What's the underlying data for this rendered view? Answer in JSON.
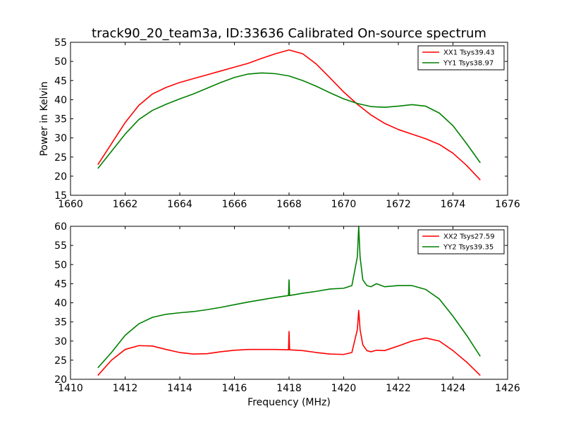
{
  "figure": {
    "title": "track90_20_team3a, ID:33636 Calibrated On-source spectrum",
    "background": "#ffffff"
  },
  "chart_data": [
    {
      "type": "line",
      "title": "track90_20_team3a, ID:33636 Calibrated On-source spectrum",
      "xlabel": "",
      "ylabel": "Power in Kelvin",
      "xlim": [
        1660,
        1676
      ],
      "ylim": [
        15,
        55
      ],
      "xticks": [
        1660,
        1662,
        1664,
        1666,
        1668,
        1670,
        1672,
        1674,
        1676
      ],
      "yticks": [
        15,
        20,
        25,
        30,
        35,
        40,
        45,
        50,
        55
      ],
      "grid": false,
      "legend_position": "top-right",
      "series": [
        {
          "name": "XX1 Tsys39.43",
          "color": "#ff0000",
          "x": [
            1661,
            1661.5,
            1662,
            1662.5,
            1663,
            1663.5,
            1664,
            1664.5,
            1665,
            1665.5,
            1666,
            1666.5,
            1667,
            1667.5,
            1668,
            1668.5,
            1669,
            1669.5,
            1670,
            1670.5,
            1671,
            1671.5,
            1672,
            1672.5,
            1673,
            1673.5,
            1674,
            1674.5,
            1675
          ],
          "y": [
            23,
            28.5,
            34,
            38.5,
            41.5,
            43.2,
            44.5,
            45.5,
            46.5,
            47.5,
            48.5,
            49.5,
            50.8,
            52,
            53,
            52,
            49.3,
            45.7,
            42,
            38.8,
            36,
            33.8,
            32.2,
            31,
            29.8,
            28.3,
            26,
            22.8,
            19
          ]
        },
        {
          "name": "YY1 Tsys38.97",
          "color": "#008000",
          "x": [
            1661,
            1661.5,
            1662,
            1662.5,
            1663,
            1663.5,
            1664,
            1664.5,
            1665,
            1665.5,
            1666,
            1666.5,
            1667,
            1667.5,
            1668,
            1668.5,
            1669,
            1669.5,
            1670,
            1670.5,
            1671,
            1671.5,
            1672,
            1672.5,
            1673,
            1673.5,
            1674,
            1674.5,
            1675
          ],
          "y": [
            22,
            26.5,
            31,
            34.8,
            37.2,
            38.8,
            40.2,
            41.5,
            43,
            44.5,
            45.8,
            46.7,
            47,
            46.8,
            46.2,
            45,
            43.5,
            41.8,
            40.2,
            39,
            38.2,
            38,
            38.3,
            38.7,
            38.3,
            36.5,
            33.2,
            28.5,
            23.5
          ]
        }
      ]
    },
    {
      "type": "line",
      "title": "",
      "xlabel": "Frequency (MHz)",
      "ylabel": "",
      "xlim": [
        1410,
        1426
      ],
      "ylim": [
        20,
        60
      ],
      "xticks": [
        1410,
        1412,
        1414,
        1416,
        1418,
        1420,
        1422,
        1424,
        1426
      ],
      "yticks": [
        20,
        25,
        30,
        35,
        40,
        45,
        50,
        55,
        60
      ],
      "grid": false,
      "legend_position": "top-right",
      "series": [
        {
          "name": "XX2 Tsys27.59",
          "color": "#ff0000",
          "x": [
            1411,
            1411.5,
            1412,
            1412.5,
            1413,
            1413.5,
            1414,
            1414.5,
            1415,
            1415.5,
            1416,
            1416.5,
            1417,
            1417.5,
            1417.98,
            1418.0,
            1418.02,
            1418.5,
            1419,
            1419.5,
            1420,
            1420.3,
            1420.5,
            1420.55,
            1420.6,
            1420.7,
            1420.85,
            1421,
            1421.2,
            1421.5,
            1422,
            1422.5,
            1423,
            1423.5,
            1424,
            1424.5,
            1425
          ],
          "y": [
            21,
            25,
            27.8,
            28.8,
            28.7,
            27.8,
            27,
            26.6,
            26.7,
            27.2,
            27.6,
            27.8,
            27.8,
            27.8,
            27.7,
            32.5,
            27.7,
            27.5,
            27,
            26.6,
            26.5,
            27,
            33,
            38,
            33,
            29,
            27.5,
            27.2,
            27.6,
            27.5,
            28.7,
            30,
            30.8,
            30,
            27.5,
            24.5,
            21
          ]
        },
        {
          "name": "YY2 Tsys39.35",
          "color": "#008000",
          "x": [
            1411,
            1411.5,
            1412,
            1412.5,
            1413,
            1413.5,
            1414,
            1414.5,
            1415,
            1415.5,
            1416,
            1416.5,
            1417,
            1417.5,
            1417.98,
            1418.0,
            1418.02,
            1418.5,
            1419,
            1419.5,
            1420,
            1420.3,
            1420.5,
            1420.55,
            1420.6,
            1420.7,
            1420.85,
            1421,
            1421.2,
            1421.5,
            1422,
            1422.5,
            1423,
            1423.5,
            1424,
            1424.5,
            1425
          ],
          "y": [
            23,
            27,
            31.5,
            34.5,
            36.2,
            37,
            37.4,
            37.7,
            38.2,
            38.8,
            39.5,
            40.2,
            40.8,
            41.4,
            41.9,
            46,
            41.9,
            42.5,
            43,
            43.6,
            43.8,
            44.5,
            52,
            60,
            52,
            46,
            44.5,
            44.2,
            45,
            44.2,
            44.5,
            44.5,
            43.5,
            41,
            36.5,
            31.5,
            26
          ]
        }
      ]
    }
  ]
}
